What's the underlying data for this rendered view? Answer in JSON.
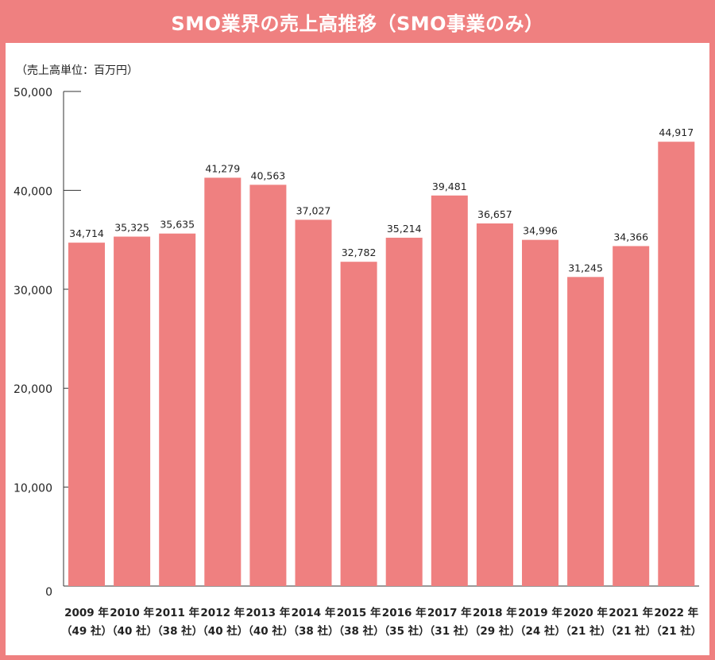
{
  "title": "SMO業界の売上高推移（SMO事業のみ）",
  "colors": {
    "bar": "#ef8080",
    "frame": "#ef8080",
    "axis": "#333333"
  },
  "chart_data": {
    "type": "bar",
    "title": "SMO業界の売上高推移（SMO事業のみ）",
    "unit_label": "（売上高単位：百万円）",
    "ylim": [
      0,
      50000
    ],
    "yticks": [
      "0",
      "10,000",
      "20,000",
      "30,000",
      "40,000",
      "50,000"
    ],
    "grid": false,
    "categories": [
      {
        "year": "2009 年",
        "companies": "（49 社）"
      },
      {
        "year": "2010 年",
        "companies": "（40 社）"
      },
      {
        "year": "2011 年",
        "companies": "（38 社）"
      },
      {
        "year": "2012 年",
        "companies": "（40 社）"
      },
      {
        "year": "2013 年",
        "companies": "（40 社）"
      },
      {
        "year": "2014 年",
        "companies": "（38 社）"
      },
      {
        "year": "2015 年",
        "companies": "（38 社）"
      },
      {
        "year": "2016 年",
        "companies": "（35 社）"
      },
      {
        "year": "2017 年",
        "companies": "（31 社）"
      },
      {
        "year": "2018 年",
        "companies": "（29 社）"
      },
      {
        "year": "2019 年",
        "companies": "（24 社）"
      },
      {
        "year": "2020 年",
        "companies": "（21 社）"
      },
      {
        "year": "2021 年",
        "companies": "（21 社）"
      },
      {
        "year": "2022 年",
        "companies": "（21 社）"
      }
    ],
    "values": [
      34714,
      35325,
      35635,
      41279,
      40563,
      37027,
      32782,
      35214,
      39481,
      36657,
      34996,
      31245,
      34366,
      44917
    ],
    "value_labels": [
      "34,714",
      "35,325",
      "35,635",
      "41,279",
      "40,563",
      "37,027",
      "32,782",
      "35,214",
      "39,481",
      "36,657",
      "34,996",
      "31,245",
      "34,366",
      "44,917"
    ]
  }
}
